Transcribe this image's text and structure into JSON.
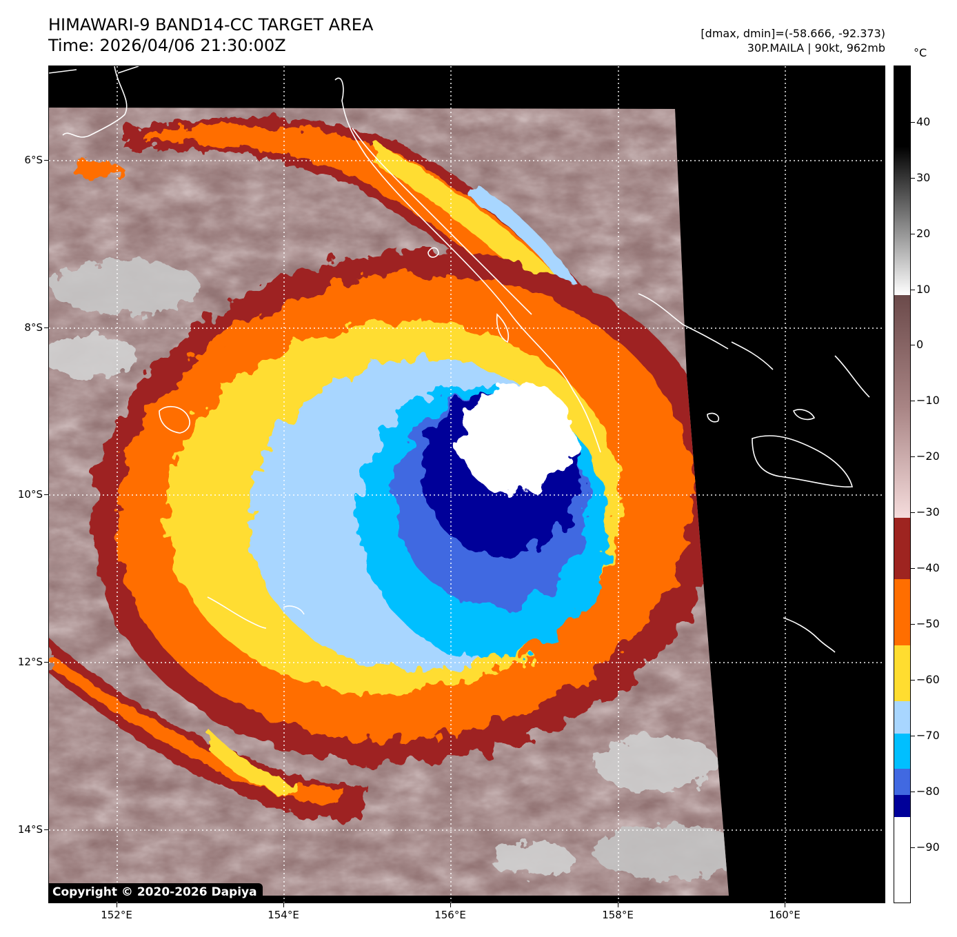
{
  "header": {
    "title_line1": "HIMAWARI-9 BAND14-CC TARGET AREA",
    "title_line2": "Time: 2026/04/06 21:30:00Z",
    "info_line1": "[dmax, dmin]=(-58.666, -92.373)",
    "info_line2": "30P.MAILA | 90kt, 962mb"
  },
  "colorbar": {
    "unit": "°C",
    "ticks": [
      "40",
      "30",
      "20",
      "10",
      "0",
      "−10",
      "−20",
      "−30",
      "−40",
      "−50",
      "−60",
      "−70",
      "−80",
      "−90"
    ],
    "tick_values": [
      40,
      30,
      20,
      10,
      0,
      -10,
      -20,
      -30,
      -40,
      -50,
      -60,
      -70,
      -80,
      -90
    ],
    "range": [
      -100,
      50
    ],
    "colors": {
      "above_10": "grayscale black-to-white",
      "band_10_to_-30": [
        "#6b4a4a",
        "#a88484",
        "#f5dcdc"
      ],
      "-30_to_-41": "#9e2420",
      "-41_to_-53": "#ff6e00",
      "-53_to_-63": "#ffdd30",
      "-63_to_-70": "#a8d6ff",
      "-70_to_-79": "#00bfff",
      "-79_to_-83": "#4169e1",
      "-83_to_-87": "#000099",
      "below_-87": "#ffffff"
    }
  },
  "axes": {
    "x_labels": [
      "152°E",
      "154°E",
      "156°E",
      "158°E",
      "160°E"
    ],
    "y_labels": [
      "6°S",
      "8°S",
      "10°S",
      "12°S",
      "14°S"
    ],
    "grid": "dotted white"
  },
  "copyright": "Copyright © 2020-2026 Dapiya"
}
